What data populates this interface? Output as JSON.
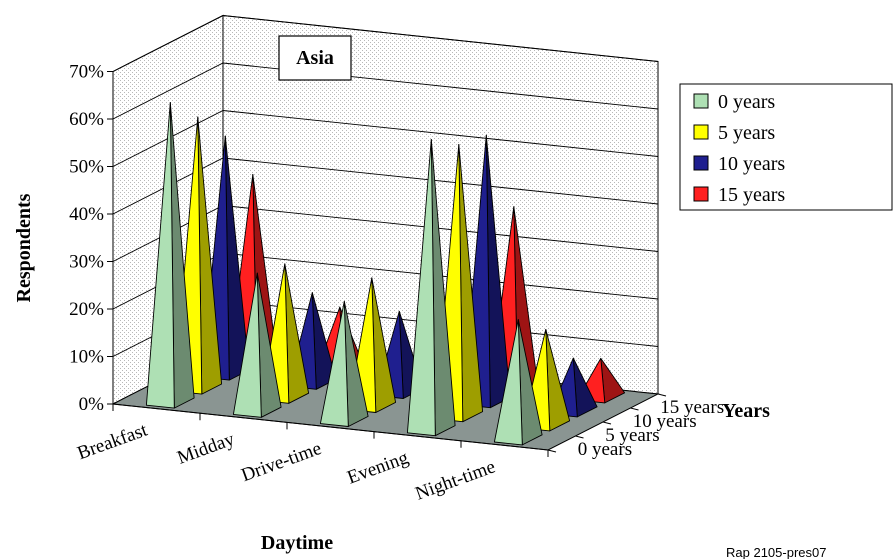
{
  "chart_data": {
    "type": "bar",
    "subtype": "3d-pyramid",
    "title": "Asia",
    "xlabel": "Daytime",
    "ylabel": "Respondents",
    "zlabel": "Years",
    "categories": [
      "Breakfast",
      "Midday",
      "Drive-time",
      "Evening",
      "Night-time"
    ],
    "y_ticks": [
      "0%",
      "10%",
      "20%",
      "30%",
      "40%",
      "50%",
      "60%",
      "70%"
    ],
    "ylim": [
      0,
      70
    ],
    "z_ticks": [
      "0 years",
      "5 years",
      "10 years",
      "15 years"
    ],
    "legend_position": "right",
    "grid": true,
    "series": [
      {
        "name": "0 years",
        "color": "#aee0b4",
        "values": [
          63,
          29,
          25,
          61,
          25
        ]
      },
      {
        "name": "5 years",
        "color": "#ffff00",
        "values": [
          57,
          28,
          27,
          57,
          20
        ]
      },
      {
        "name": "10 years",
        "color": "#1f1f8f",
        "values": [
          50,
          19,
          17,
          56,
          11
        ]
      },
      {
        "name": "15 years",
        "color": "#ff2020",
        "values": [
          39,
          13,
          9,
          38,
          8
        ]
      }
    ]
  },
  "footer_ref": "Rap 2105-pres07"
}
